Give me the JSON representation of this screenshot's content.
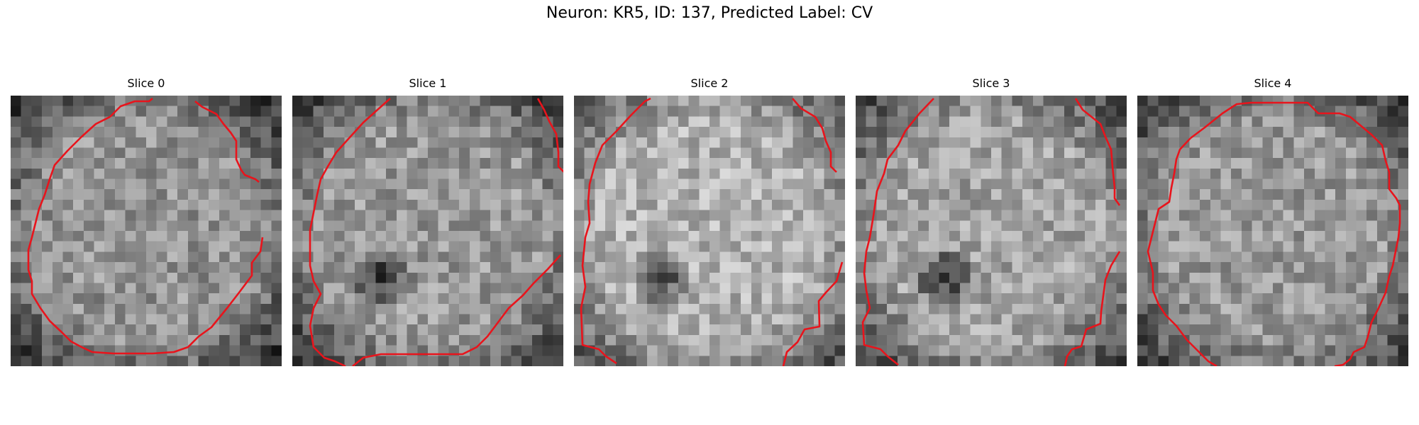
{
  "figure": {
    "title": "Neuron: KR5, ID: 137, Predicted Label: CV"
  },
  "colors": {
    "contour": "#e8141c",
    "background": "#ffffff"
  },
  "panels": [
    {
      "title": "Slice 0",
      "brightness": 0.58,
      "dark_blob": false
    },
    {
      "title": "Slice 1",
      "brightness": 0.6,
      "dark_blob": true
    },
    {
      "title": "Slice 2",
      "brightness": 0.7,
      "dark_blob": true
    },
    {
      "title": "Slice 3",
      "brightness": 0.64,
      "dark_blob": true
    },
    {
      "title": "Slice 4",
      "brightness": 0.6,
      "dark_blob": false
    }
  ]
}
